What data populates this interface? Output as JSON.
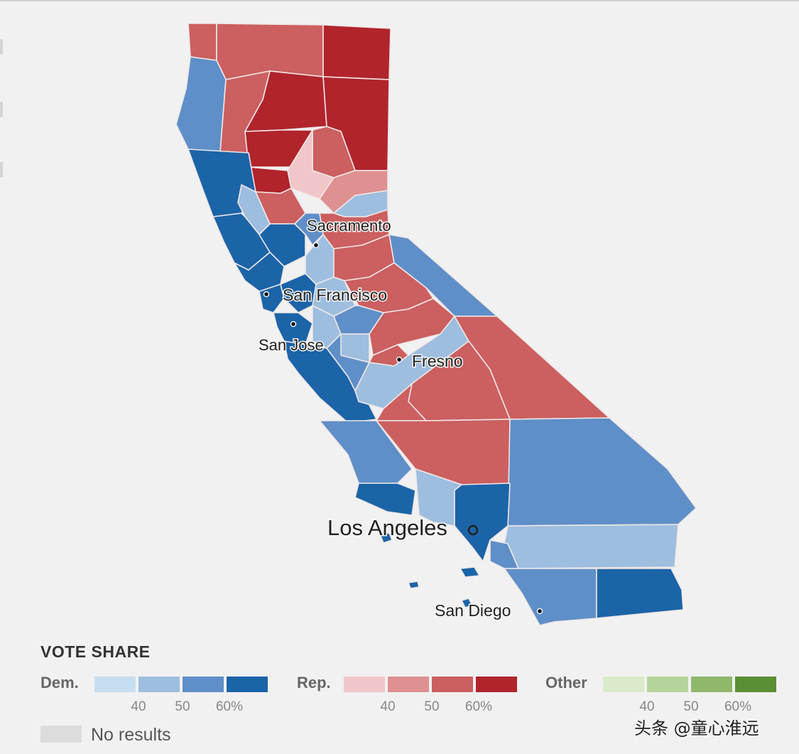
{
  "colors": {
    "dem": [
      "#c6def1",
      "#9dbedf",
      "#5f8fc8",
      "#1b64a8"
    ],
    "rep": [
      "#f1c6c8",
      "#df9090",
      "#cc5f5f",
      "#b1242c"
    ],
    "other": [
      "#d9ebc8",
      "#b5d49a",
      "#8fb86d",
      "#5b8f35"
    ],
    "no_results": "#dcdcdc",
    "background": "#f1f1f1"
  },
  "map": {
    "cities": [
      {
        "name": "Sacramento",
        "size": "small"
      },
      {
        "name": "San Francisco",
        "size": "small"
      },
      {
        "name": "San Jose",
        "size": "small"
      },
      {
        "name": "Fresno",
        "size": "small"
      },
      {
        "name": "Los Angeles",
        "size": "large"
      },
      {
        "name": "San Diego",
        "size": "small"
      }
    ]
  },
  "legend": {
    "title": "VOTE SHARE",
    "groups": [
      {
        "key": "dem",
        "label": "Dem.",
        "ticks": [
          "40",
          "50",
          "60%"
        ]
      },
      {
        "key": "rep",
        "label": "Rep.",
        "ticks": [
          "40",
          "50",
          "60%"
        ]
      },
      {
        "key": "other",
        "label": "Other",
        "ticks": [
          "40",
          "50",
          "60%"
        ]
      }
    ],
    "no_results_label": "No results"
  },
  "watermark": "头条 @童心淮远"
}
